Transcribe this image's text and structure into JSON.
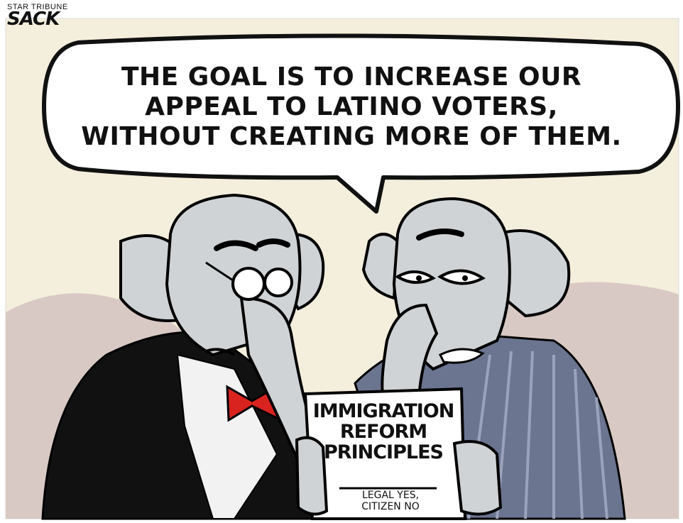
{
  "credit": {
    "paper": "STAR TRIBUNE",
    "artist": "SACK"
  },
  "speech_bubble": {
    "lines": [
      "THE GOAL IS TO INCREASE OUR",
      "APPEAL TO LATINO VOTERS,",
      "WITHOUT CREATING MORE OF THEM."
    ]
  },
  "document": {
    "title_lines": [
      "IMMIGRATION",
      "REFORM",
      "PRINCIPLES"
    ],
    "sub_lines": [
      "LEGAL YES,",
      "CITIZEN NO"
    ]
  },
  "colors": {
    "sky": "#f4eedc",
    "background_hills": "#d9c9c4",
    "elephant": "#cfd3d6",
    "suit_left": "#111111",
    "suit_right": "#6b7590",
    "bowtie": "#d8231f",
    "paper": "#ffffff"
  }
}
